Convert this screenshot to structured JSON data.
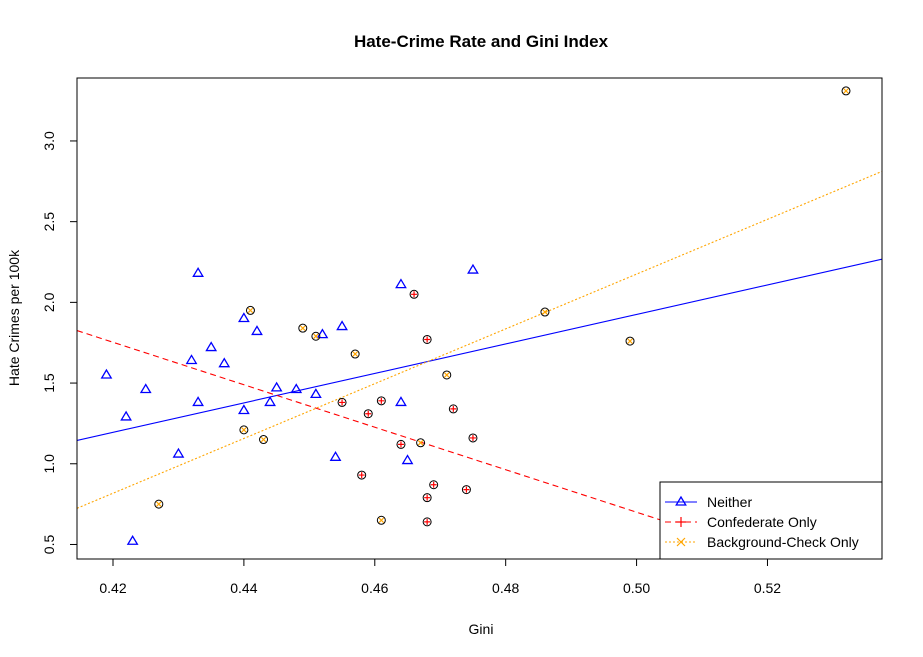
{
  "chart_data": {
    "type": "scatter",
    "title": "Hate-Crime Rate and Gini Index",
    "xlabel": "Gini",
    "ylabel": "Hate Crimes per 100k",
    "xlim": [
      0.4145,
      0.5375
    ],
    "ylim": [
      0.41,
      3.39
    ],
    "x_ticks": [
      0.42,
      0.44,
      0.46,
      0.48,
      0.5,
      0.52
    ],
    "x_tick_labels": [
      "0.42",
      "0.44",
      "0.46",
      "0.48",
      "0.50",
      "0.52"
    ],
    "y_ticks": [
      0.5,
      1.0,
      1.5,
      2.0,
      2.5,
      3.0
    ],
    "y_tick_labels": [
      "0.5",
      "1.0",
      "1.5",
      "2.0",
      "2.5",
      "3.0"
    ],
    "grid": false,
    "legend_position": "bottom-right",
    "series": [
      {
        "name": "Neither",
        "color": "#0000ff",
        "marker": "triangle",
        "line_style": "solid",
        "fit": {
          "intercept": -2.64,
          "slope": 9.13
        },
        "points": [
          [
            0.419,
            1.55
          ],
          [
            0.422,
            1.29
          ],
          [
            0.423,
            0.52
          ],
          [
            0.425,
            1.46
          ],
          [
            0.43,
            1.06
          ],
          [
            0.432,
            1.64
          ],
          [
            0.433,
            2.18
          ],
          [
            0.433,
            1.38
          ],
          [
            0.435,
            1.72
          ],
          [
            0.437,
            1.62
          ],
          [
            0.44,
            1.9
          ],
          [
            0.44,
            1.33
          ],
          [
            0.442,
            1.82
          ],
          [
            0.444,
            1.38
          ],
          [
            0.445,
            1.47
          ],
          [
            0.448,
            1.46
          ],
          [
            0.451,
            1.43
          ],
          [
            0.452,
            1.8
          ],
          [
            0.454,
            1.04
          ],
          [
            0.455,
            1.85
          ],
          [
            0.464,
            2.11
          ],
          [
            0.464,
            1.38
          ],
          [
            0.465,
            1.02
          ],
          [
            0.475,
            2.2
          ]
        ]
      },
      {
        "name": "Confederate Only",
        "color": "#ff0000",
        "marker": "plus",
        "line_style": "dashed",
        "fit": {
          "intercept": 7.28,
          "slope": -13.16
        },
        "points": [
          [
            0.455,
            1.38
          ],
          [
            0.458,
            0.93
          ],
          [
            0.459,
            1.31
          ],
          [
            0.461,
            1.39
          ],
          [
            0.464,
            1.12
          ],
          [
            0.466,
            2.05
          ],
          [
            0.468,
            1.77
          ],
          [
            0.468,
            0.79
          ],
          [
            0.468,
            0.64
          ],
          [
            0.469,
            0.87
          ],
          [
            0.472,
            1.34
          ],
          [
            0.474,
            0.84
          ],
          [
            0.475,
            1.16
          ]
        ]
      },
      {
        "name": "Background-Check Only",
        "color": "#ffa500",
        "marker": "cross",
        "line_style": "dotted",
        "fit": {
          "intercept": -6.31,
          "slope": 16.97
        },
        "points": [
          [
            0.427,
            0.75
          ],
          [
            0.44,
            1.21
          ],
          [
            0.441,
            1.95
          ],
          [
            0.443,
            1.15
          ],
          [
            0.449,
            1.84
          ],
          [
            0.451,
            1.79
          ],
          [
            0.457,
            1.68
          ],
          [
            0.461,
            0.65
          ],
          [
            0.467,
            1.13
          ],
          [
            0.471,
            1.55
          ],
          [
            0.486,
            1.94
          ],
          [
            0.499,
            1.76
          ],
          [
            0.532,
            3.31
          ]
        ]
      }
    ]
  }
}
